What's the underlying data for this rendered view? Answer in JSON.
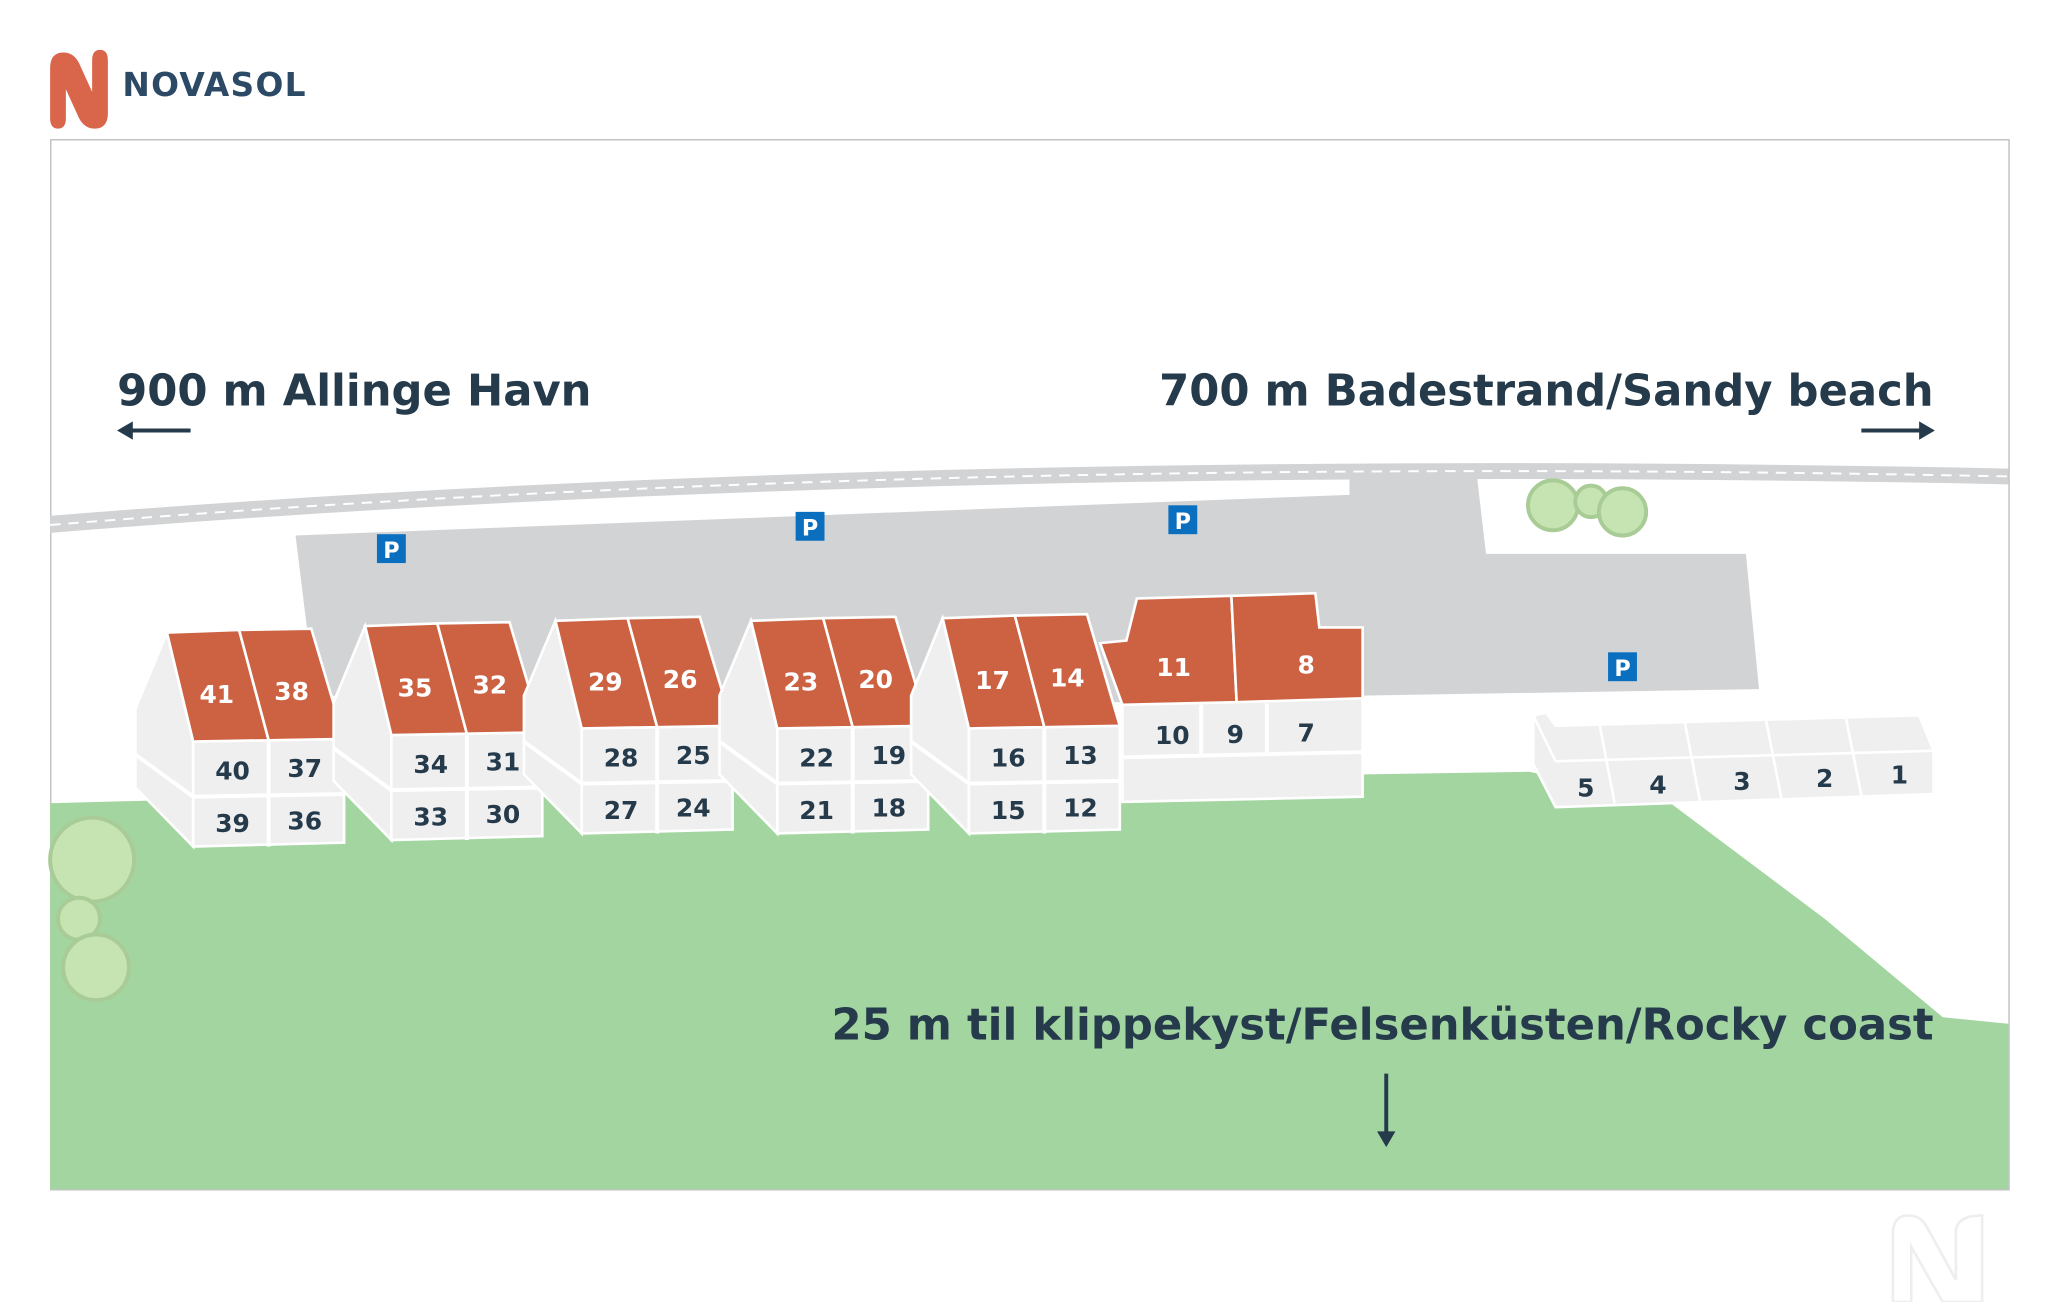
{
  "brand": {
    "name": "NOVASOL",
    "color": "#d9654a",
    "text_color": "#2c4a66"
  },
  "labels": {
    "west": "900 m Allinge Havn",
    "east": "700 m Badestrand/Sandy beach",
    "coast": "25 m til klippekyst/Felsenküsten/Rocky coast"
  },
  "parking_label": "P",
  "colors": {
    "roof": "#cc6242",
    "wall": "#efeff0",
    "parking": "#d2d3d5",
    "grass": "#a3d5a1",
    "tree": "#c5e4b1",
    "parking_sign": "#0a6fbf",
    "text": "#253a4a"
  },
  "houses": [
    {
      "roof": [
        "41",
        "38"
      ],
      "upper": [
        "40",
        "37"
      ],
      "lower": [
        "39",
        "36"
      ]
    },
    {
      "roof": [
        "35",
        "32"
      ],
      "upper": [
        "34",
        "31"
      ],
      "lower": [
        "33",
        "30"
      ]
    },
    {
      "roof": [
        "29",
        "26"
      ],
      "upper": [
        "28",
        "25"
      ],
      "lower": [
        "27",
        "24"
      ]
    },
    {
      "roof": [
        "23",
        "20"
      ],
      "upper": [
        "22",
        "19"
      ],
      "lower": [
        "21",
        "18"
      ]
    },
    {
      "roof": [
        "17",
        "14"
      ],
      "upper": [
        "16",
        "13"
      ],
      "lower": [
        "15",
        "12"
      ]
    }
  ],
  "big_building": {
    "roof": [
      "11",
      "8"
    ],
    "ground": [
      "10",
      "9",
      "7"
    ]
  },
  "row_building": [
    "5",
    "4",
    "3",
    "2",
    "1"
  ]
}
